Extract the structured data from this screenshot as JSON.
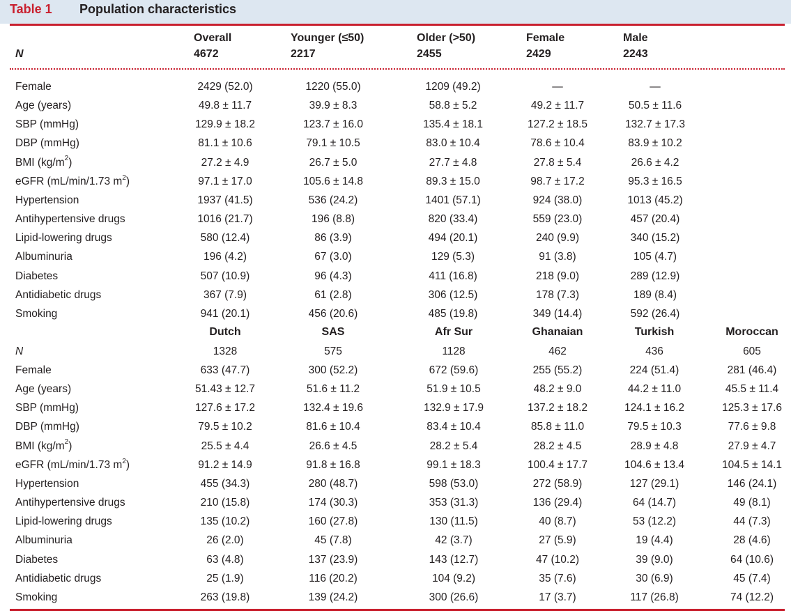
{
  "caption": {
    "label": "Table 1",
    "title": "Population characteristics"
  },
  "section1": {
    "n_label": "N",
    "columns": [
      {
        "name": "Overall",
        "n": "4672"
      },
      {
        "name": "Younger (≤50)",
        "n": "2217"
      },
      {
        "name": "Older (>50)",
        "n": "2455"
      },
      {
        "name": "Female",
        "n": "2429"
      },
      {
        "name": "Male",
        "n": "2243"
      }
    ],
    "rows": [
      {
        "label": "Female",
        "values": [
          "2429 (52.0)",
          "1220 (55.0)",
          "1209 (49.2)",
          "—",
          "—"
        ]
      },
      {
        "label": "Age (years)",
        "values": [
          "49.8 ± 11.7",
          "39.9 ± 8.3",
          "58.8 ± 5.2",
          "49.2 ± 11.7",
          "50.5 ± 11.6"
        ]
      },
      {
        "label": "SBP (mmHg)",
        "values": [
          "129.9 ± 18.2",
          "123.7 ± 16.0",
          "135.4 ± 18.1",
          "127.2 ± 18.5",
          "132.7 ± 17.3"
        ]
      },
      {
        "label": "DBP (mmHg)",
        "values": [
          "81.1 ± 10.6",
          "79.1 ± 10.5",
          "83.0 ± 10.4",
          "78.6 ± 10.4",
          "83.9 ± 10.2"
        ]
      },
      {
        "label": "BMI (kg/m",
        "sup": "2",
        "tail": ")",
        "values": [
          "27.2 ± 4.9",
          "26.7 ± 5.0",
          "27.7 ± 4.8",
          "27.8 ± 5.4",
          "26.6 ± 4.2"
        ]
      },
      {
        "label": "eGFR (mL/min/1.73 m",
        "sup": "2",
        "tail": ")",
        "values": [
          "97.1 ± 17.0",
          "105.6 ± 14.8",
          "89.3 ± 15.0",
          "98.7 ± 17.2",
          "95.3 ± 16.5"
        ]
      },
      {
        "label": "Hypertension",
        "values": [
          "1937 (41.5)",
          "536 (24.2)",
          "1401 (57.1)",
          "924 (38.0)",
          "1013 (45.2)"
        ]
      },
      {
        "label": "Antihypertensive drugs",
        "values": [
          "1016 (21.7)",
          "196 (8.8)",
          "820 (33.4)",
          "559 (23.0)",
          "457 (20.4)"
        ]
      },
      {
        "label": "Lipid-lowering drugs",
        "values": [
          "580 (12.4)",
          "86 (3.9)",
          "494 (20.1)",
          "240 (9.9)",
          "340 (15.2)"
        ]
      },
      {
        "label": "Albuminuria",
        "values": [
          "196 (4.2)",
          "67 (3.0)",
          "129 (5.3)",
          "91 (3.8)",
          "105 (4.7)"
        ]
      },
      {
        "label": "Diabetes",
        "values": [
          "507 (10.9)",
          "96 (4.3)",
          "411 (16.8)",
          "218 (9.0)",
          "289 (12.9)"
        ]
      },
      {
        "label": "Antidiabetic drugs",
        "values": [
          "367 (7.9)",
          "61 (2.8)",
          "306 (12.5)",
          "178 (7.3)",
          "189 (8.4)"
        ]
      },
      {
        "label": "Smoking",
        "values": [
          "941 (20.1)",
          "456 (20.6)",
          "485 (19.8)",
          "349 (14.4)",
          "592 (26.4)"
        ]
      }
    ]
  },
  "section2": {
    "n_label": "N",
    "columns": [
      {
        "name": "Dutch",
        "n": "1328"
      },
      {
        "name": "SAS",
        "n": "575"
      },
      {
        "name": "Afr Sur",
        "n": "1128"
      },
      {
        "name": "Ghanaian",
        "n": "462"
      },
      {
        "name": "Turkish",
        "n": "436"
      },
      {
        "name": "Moroccan",
        "n": "605"
      }
    ],
    "rows": [
      {
        "label": "Female",
        "values": [
          "633 (47.7)",
          "300 (52.2)",
          "672 (59.6)",
          "255 (55.2)",
          "224 (51.4)",
          "281 (46.4)"
        ]
      },
      {
        "label": "Age (years)",
        "values": [
          "51.43 ± 12.7",
          "51.6 ± 11.2",
          "51.9 ± 10.5",
          "48.2 ± 9.0",
          "44.2 ± 11.0",
          "45.5 ± 11.4"
        ]
      },
      {
        "label": "SBP (mmHg)",
        "values": [
          "127.6 ± 17.2",
          "132.4 ± 19.6",
          "132.9 ± 17.9",
          "137.2 ± 18.2",
          "124.1 ± 16.2",
          "125.3 ± 17.6"
        ]
      },
      {
        "label": "DBP (mmHg)",
        "values": [
          "79.5 ± 10.2",
          "81.6 ± 10.4",
          "83.4 ± 10.4",
          "85.8 ± 11.0",
          "79.5 ± 10.3",
          "77.6 ± 9.8"
        ]
      },
      {
        "label": "BMI (kg/m",
        "sup": "2",
        "tail": ")",
        "values": [
          "25.5 ± 4.4",
          "26.6 ± 4.5",
          "28.2 ± 5.4",
          "28.2 ± 4.5",
          "28.9 ± 4.8",
          "27.9 ± 4.7"
        ]
      },
      {
        "label": "eGFR (mL/min/1.73 m",
        "sup": "2",
        "tail": ")",
        "values": [
          "91.2 ± 14.9",
          "91.8 ± 16.8",
          "99.1 ± 18.3",
          "100.4 ± 17.7",
          "104.6 ± 13.4",
          "104.5 ± 14.1"
        ]
      },
      {
        "label": "Hypertension",
        "values": [
          "455 (34.3)",
          "280 (48.7)",
          "598 (53.0)",
          "272 (58.9)",
          "127 (29.1)",
          "146 (24.1)"
        ]
      },
      {
        "label": "Antihypertensive drugs",
        "values": [
          "210 (15.8)",
          "174 (30.3)",
          "353 (31.3)",
          "136 (29.4)",
          "64 (14.7)",
          "49 (8.1)"
        ]
      },
      {
        "label": "Lipid-lowering drugs",
        "values": [
          "135 (10.2)",
          "160 (27.8)",
          "130 (11.5)",
          "40 (8.7)",
          "53 (12.2)",
          "44 (7.3)"
        ]
      },
      {
        "label": "Albuminuria",
        "values": [
          "26 (2.0)",
          "45 (7.8)",
          "42 (3.7)",
          "27 (5.9)",
          "19 (4.4)",
          "28 (4.6)"
        ]
      },
      {
        "label": "Diabetes",
        "values": [
          "63 (4.8)",
          "137 (23.9)",
          "143 (12.7)",
          "47 (10.2)",
          "39 (9.0)",
          "64 (10.6)"
        ]
      },
      {
        "label": "Antidiabetic drugs",
        "values": [
          "25 (1.9)",
          "116 (20.2)",
          "104 (9.2)",
          "35 (7.6)",
          "30 (6.9)",
          "45 (7.4)"
        ]
      },
      {
        "label": "Smoking",
        "values": [
          "263 (19.8)",
          "139 (24.2)",
          "300 (26.6)",
          "17 (3.7)",
          "117 (26.8)",
          "74 (12.2)"
        ]
      }
    ]
  },
  "colors": {
    "accent": "#c9202f",
    "header_band": "#dde7f1",
    "text": "#231f20"
  }
}
